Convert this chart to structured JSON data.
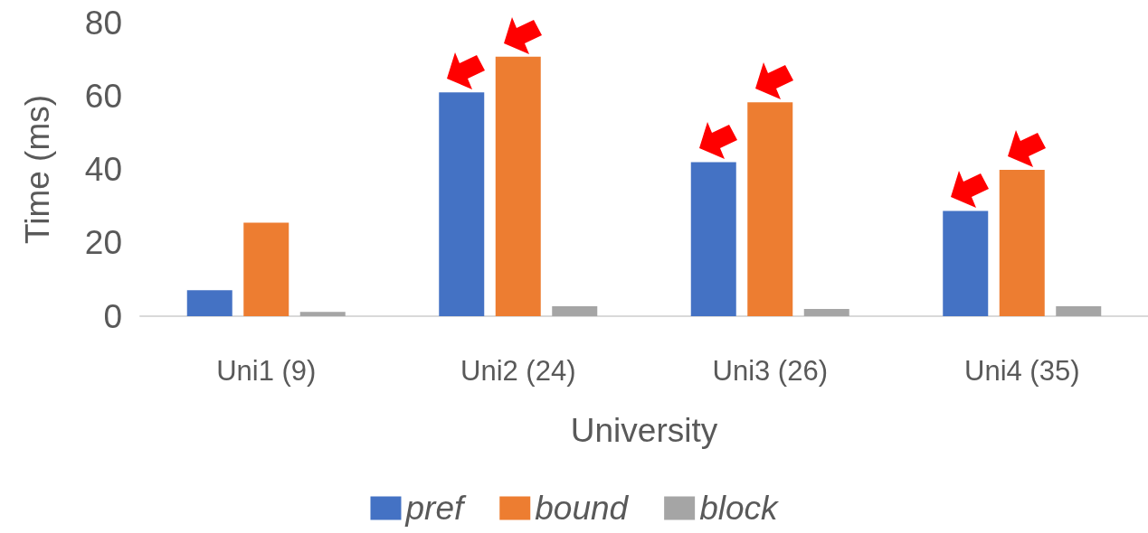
{
  "chart_data": {
    "type": "bar",
    "xlabel": "University",
    "ylabel": "Time (ms)",
    "categories": [
      "Uni1 (9)",
      "Uni2 (24)",
      "Uni3 (26)",
      "Uni4 (35)"
    ],
    "series": [
      {
        "name": "pref",
        "color": "#4472c4",
        "values": [
          7.1,
          61,
          42,
          28.7
        ]
      },
      {
        "name": "bound",
        "color": "#ed7d31",
        "values": [
          25.5,
          70.7,
          58.3,
          39.9
        ]
      },
      {
        "name": "block",
        "color": "#a5a5a5",
        "values": [
          1.2,
          2.7,
          2.0,
          2.7
        ]
      }
    ],
    "ylim": [
      0,
      80
    ],
    "yticks": [
      0,
      20,
      40,
      60,
      80
    ],
    "grid": false,
    "legend": "bottom"
  }
}
